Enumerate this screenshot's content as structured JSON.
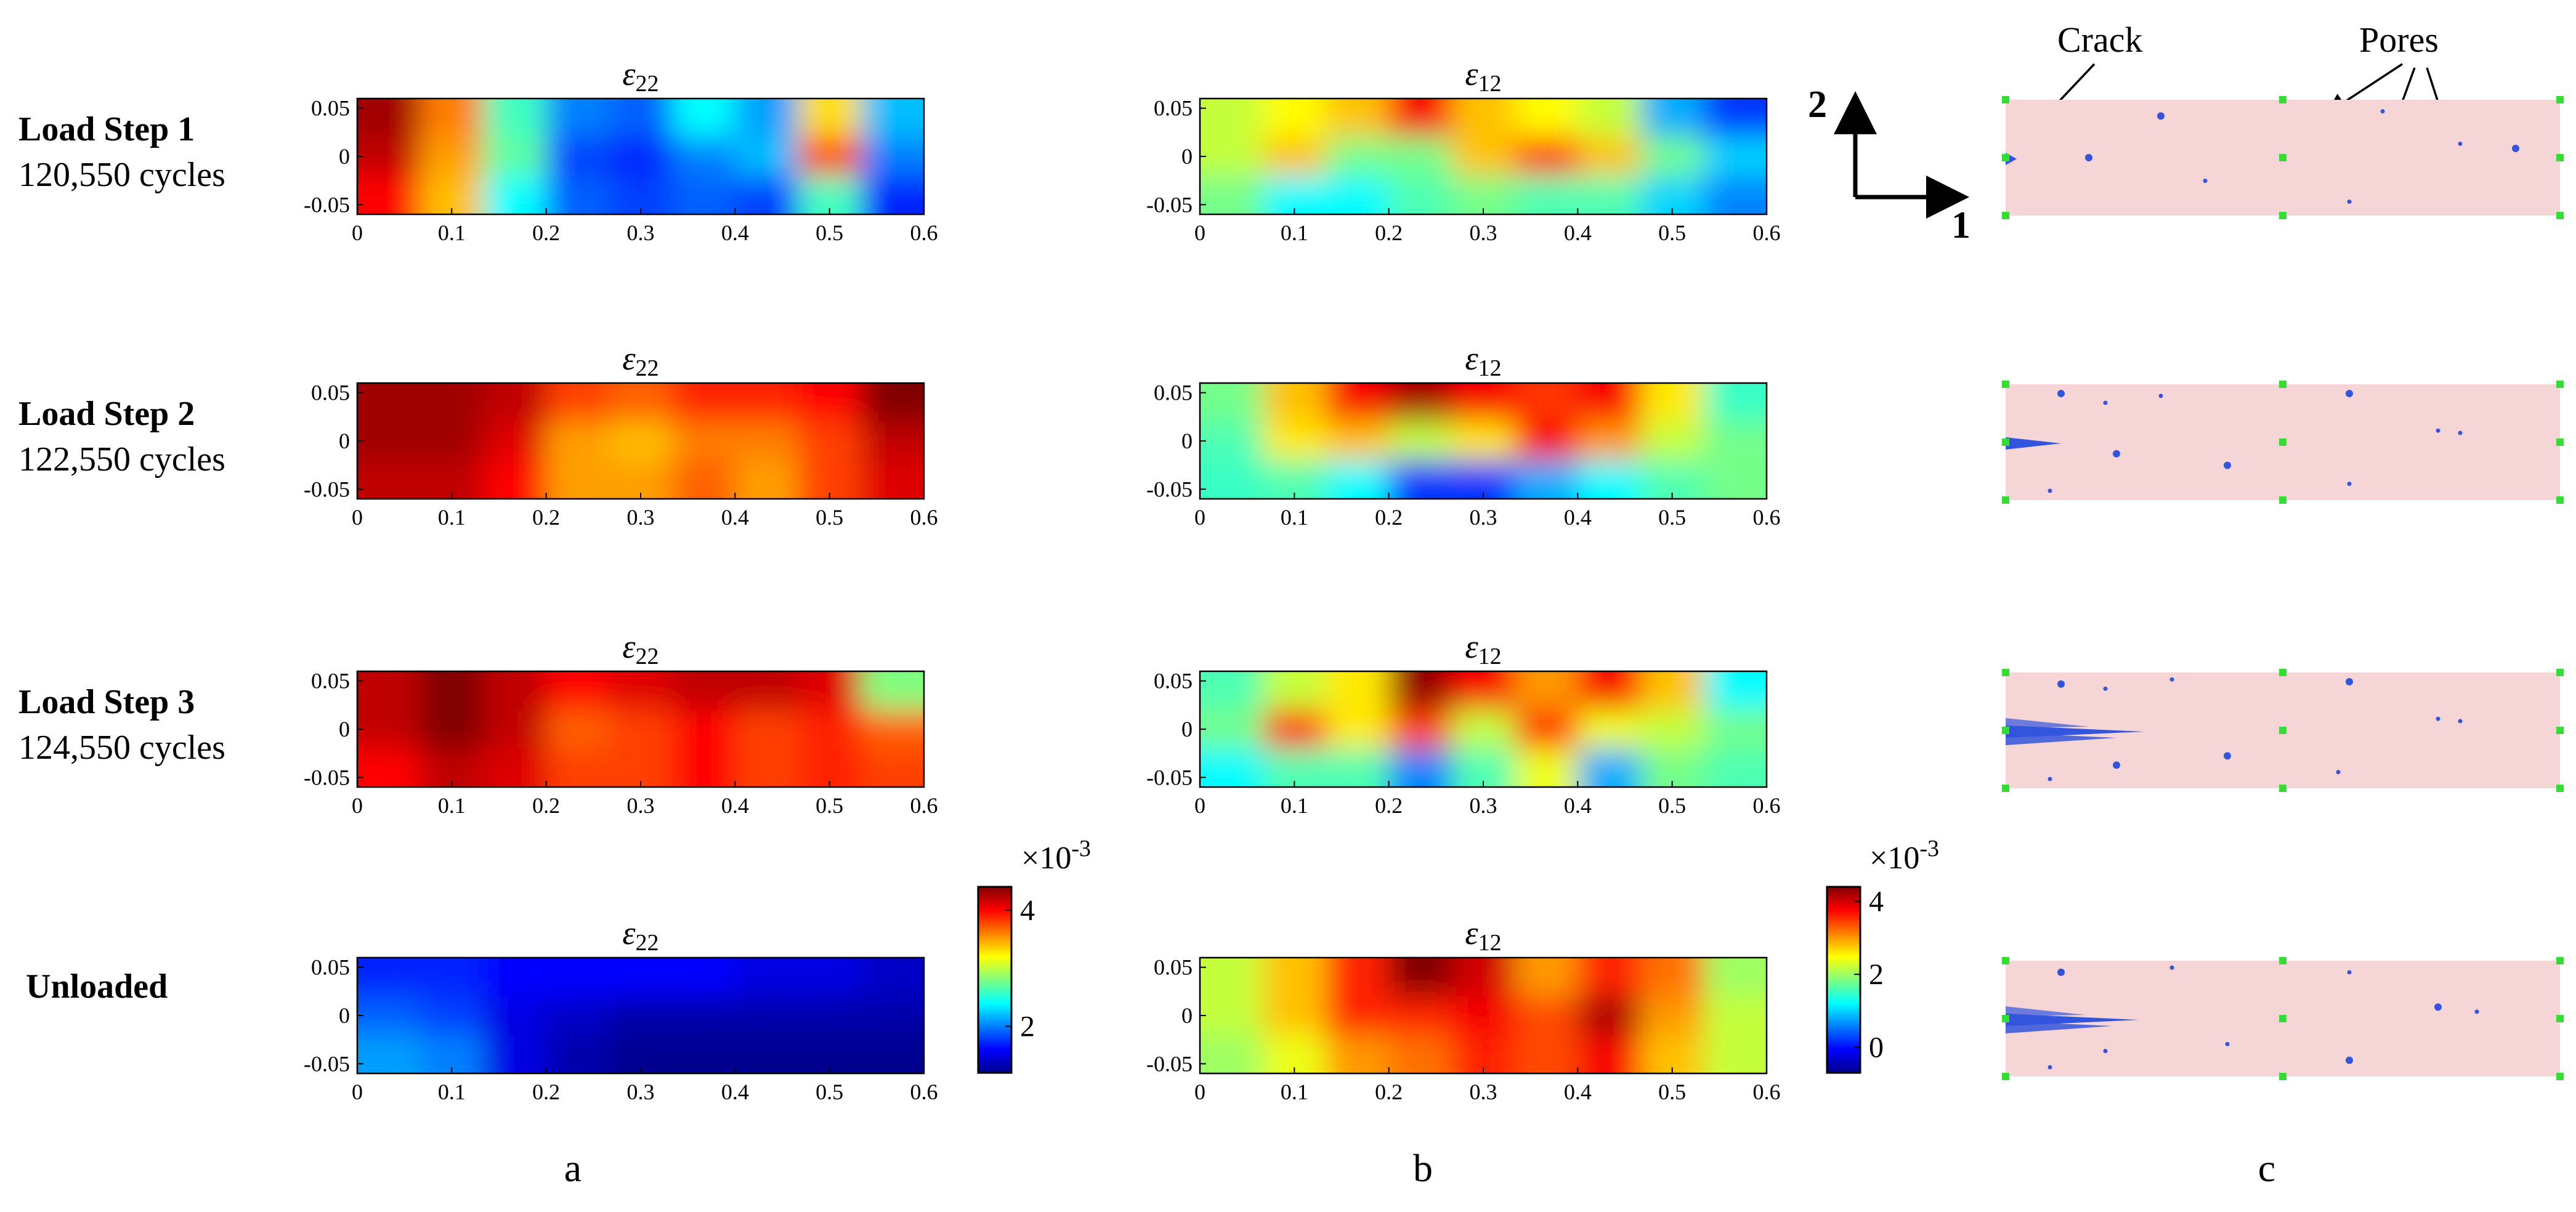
{
  "rows": [
    {
      "title": "Load Step 1",
      "subtitle": "120,550 cycles"
    },
    {
      "title": "Load Step 2",
      "subtitle": "122,550 cycles"
    },
    {
      "title": "Load Step 3",
      "subtitle": "124,550 cycles"
    },
    {
      "title": "Unloaded",
      "subtitle": ""
    }
  ],
  "column_labels": [
    "a",
    "b",
    "c"
  ],
  "panel_titles": {
    "e22": "ε22",
    "e12": "ε12"
  },
  "panel_title_parts": {
    "e22": {
      "symbol": "ε",
      "sub": "22"
    },
    "e12": {
      "symbol": "ε",
      "sub": "12"
    }
  },
  "axes": {
    "xticks": [
      "0",
      "0.1",
      "0.2",
      "0.3",
      "0.4",
      "0.5",
      "0.6"
    ],
    "yticks": [
      "0.05",
      "0",
      "-0.05"
    ]
  },
  "colorbars": [
    {
      "exponent_label": "×10",
      "exponent": "-3",
      "ticks": [
        "4",
        "2"
      ],
      "min": 1.2,
      "max": 4.4
    },
    {
      "exponent_label": "×10",
      "exponent": "-3",
      "ticks": [
        "4",
        "2",
        "0"
      ],
      "min": -0.7,
      "max": 4.4
    }
  ],
  "schematic": {
    "annotations": {
      "crack": "Crack",
      "pores": "Pores"
    },
    "axis_labels": {
      "dir1": "1",
      "dir2": "2"
    },
    "colors": {
      "background": "#f5d5d5",
      "defects": "#3355dd",
      "markers": "#33dd33"
    },
    "crack_length": [
      0.02,
      0.1,
      0.25,
      0.24
    ]
  },
  "chart_data": [
    {
      "type": "heatmap",
      "name": "a",
      "title": "ε22",
      "colormap": "jet",
      "x": [
        0,
        0.1,
        0.2,
        0.3,
        0.4,
        0.5,
        0.6
      ],
      "y": [
        0.05,
        0,
        -0.05
      ],
      "xlim": [
        0,
        0.6
      ],
      "ylim": [
        -0.06,
        0.06
      ],
      "color_scale": [
        1.2,
        4.4
      ],
      "color_scale_exponent": "x10^-3",
      "values": [
        [
          [
            4.3,
            3.6,
            2.6,
            2.0,
            1.9,
            2.4,
            2.1,
            3.3,
            2.2
          ],
          [
            4.2,
            3.5,
            2.7,
            1.8,
            1.7,
            2.0,
            2.2,
            3.8,
            2.0
          ],
          [
            4.0,
            3.4,
            2.4,
            1.9,
            1.8,
            1.9,
            1.8,
            2.6,
            1.7
          ]
        ],
        [
          [
            4.3,
            4.3,
            4.2,
            3.8,
            3.7,
            3.9,
            3.9,
            4.0,
            4.4
          ],
          [
            4.3,
            4.3,
            4.1,
            3.5,
            3.4,
            3.6,
            3.6,
            3.8,
            4.2
          ],
          [
            4.2,
            4.2,
            4.0,
            3.5,
            3.5,
            3.7,
            3.5,
            3.8,
            4.1
          ]
        ],
        [
          [
            4.2,
            4.4,
            4.2,
            4.0,
            4.1,
            4.2,
            4.2,
            4.1,
            2.8
          ],
          [
            4.2,
            4.4,
            4.2,
            3.7,
            3.8,
            4.0,
            3.8,
            3.9,
            3.7
          ],
          [
            4.0,
            4.2,
            4.1,
            3.8,
            3.8,
            4.0,
            3.8,
            3.9,
            3.8
          ]
        ],
        [
          [
            1.7,
            1.7,
            1.6,
            1.6,
            1.6,
            1.6,
            1.5,
            1.5,
            1.4
          ],
          [
            1.9,
            1.8,
            1.5,
            1.4,
            1.3,
            1.3,
            1.3,
            1.3,
            1.3
          ],
          [
            2.1,
            2.0,
            1.5,
            1.3,
            1.2,
            1.2,
            1.2,
            1.2,
            1.2
          ]
        ]
      ]
    },
    {
      "type": "heatmap",
      "name": "b",
      "title": "ε12",
      "colormap": "jet",
      "x": [
        0,
        0.1,
        0.2,
        0.3,
        0.4,
        0.5,
        0.6
      ],
      "y": [
        0.05,
        0,
        -0.05
      ],
      "xlim": [
        0,
        0.6
      ],
      "ylim": [
        -0.06,
        0.06
      ],
      "color_scale": [
        -0.7,
        4.4
      ],
      "color_scale_exponent": "x10^-3",
      "values": [
        [
          [
            2.2,
            2.5,
            2.8,
            3.8,
            2.8,
            2.5,
            2.2,
            0.8,
            0.2
          ],
          [
            2.2,
            2.8,
            1.8,
            1.8,
            2.8,
            3.5,
            2.8,
            1.8,
            1.0
          ],
          [
            1.8,
            1.2,
            1.2,
            1.6,
            1.8,
            1.6,
            1.6,
            1.0,
            0.6
          ]
        ],
        [
          [
            1.8,
            2.8,
            3.8,
            4.2,
            3.8,
            3.5,
            3.8,
            2.6,
            1.5
          ],
          [
            1.6,
            2.6,
            2.8,
            2.2,
            2.6,
            3.8,
            3.0,
            2.2,
            1.8
          ],
          [
            1.5,
            1.6,
            1.2,
            0.2,
            0.2,
            0.8,
            1.2,
            1.6,
            1.8
          ]
        ],
        [
          [
            1.6,
            2.2,
            2.6,
            4.3,
            3.8,
            3.0,
            3.8,
            2.8,
            1.2
          ],
          [
            1.8,
            3.6,
            2.6,
            3.4,
            2.2,
            3.6,
            2.4,
            2.2,
            1.8
          ],
          [
            1.2,
            1.6,
            1.6,
            0.6,
            1.6,
            2.4,
            0.8,
            1.8,
            1.6
          ]
        ],
        [
          [
            2.2,
            2.8,
            3.6,
            4.4,
            4.0,
            3.0,
            3.6,
            3.2,
            2.0
          ],
          [
            2.2,
            2.8,
            3.6,
            3.6,
            3.8,
            3.4,
            4.2,
            3.0,
            2.2
          ],
          [
            2.0,
            2.4,
            3.0,
            3.2,
            3.6,
            3.4,
            3.8,
            2.8,
            2.2
          ]
        ]
      ]
    }
  ]
}
